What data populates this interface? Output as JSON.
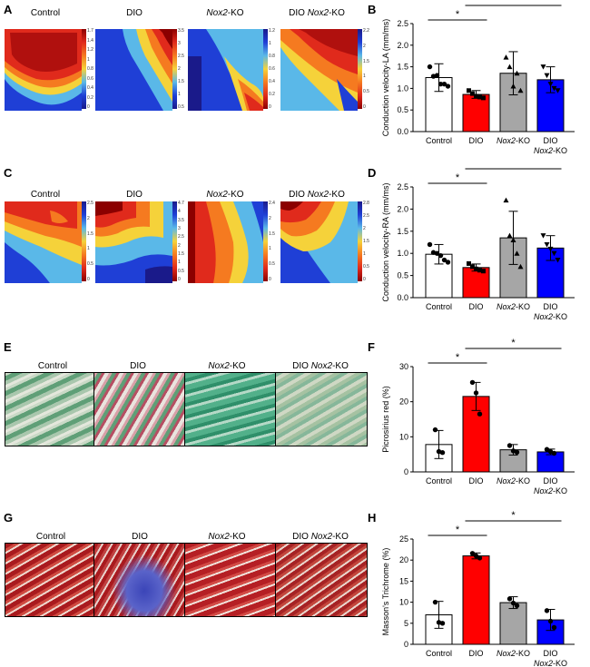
{
  "panel_letters": [
    "A",
    "B",
    "C",
    "D",
    "E",
    "F",
    "G",
    "H"
  ],
  "conditions": {
    "control": "Control",
    "dio": "DIO",
    "nox_italic": "Nox2",
    "ko_suffix": "-KO",
    "dio_prefix": "DIO "
  },
  "colorbars": {
    "A1": [
      "1.7",
      "1.4",
      "1.2",
      "1",
      "0.8",
      "0.6",
      "0.4",
      "0.2",
      "0"
    ],
    "A2": [
      "3.5",
      "3",
      "2.5",
      "2",
      "1.5",
      "1",
      "0.5"
    ],
    "A3": [
      "1.2",
      "1",
      "0.8",
      "0.6",
      "0.4",
      "0.2",
      "0"
    ],
    "A4": [
      "2.2",
      "2",
      "1.5",
      "1",
      "0.5",
      "0"
    ],
    "C1": [
      "2.5",
      "2",
      "1.5",
      "1",
      "0.5",
      "0"
    ],
    "C2": [
      "4.7",
      "4",
      "3.5",
      "3",
      "2.5",
      "2",
      "1.5",
      "1",
      "0.5",
      "0"
    ],
    "C3": [
      "2.4",
      "2",
      "1.5",
      "1",
      "0.5",
      "0"
    ],
    "C4": [
      "2.8",
      "2.5",
      "2",
      "1.5",
      "1",
      "0.5",
      "0"
    ]
  },
  "colors": {
    "control": "#ffffff",
    "dio": "#ff0000",
    "nox2ko": "#a6a6a6",
    "dionox2ko": "#0000ff",
    "stroke": "#000000"
  },
  "chart_data": [
    {
      "panel": "B",
      "type": "bar",
      "categories": [
        "Control",
        "DIO",
        "Nox2-KO",
        "DIO Nox2-KO"
      ],
      "values": [
        1.25,
        0.86,
        1.35,
        1.2
      ],
      "errors": [
        0.32,
        0.09,
        0.5,
        0.3
      ],
      "points": [
        [
          1.5,
          1.28,
          1.3,
          1.1,
          1.1,
          1.05
        ],
        [
          0.95,
          0.88,
          0.82,
          0.8,
          0.78
        ],
        [
          1.72,
          1.5,
          1.05,
          1.35,
          0.95
        ],
        [
          1.5,
          1.3,
          1.1,
          1.0,
          0.95
        ]
      ],
      "markers": [
        "circle",
        "square",
        "triangle",
        "triangle-down"
      ],
      "ylabel": "Conduction velocity-LA (mm/ms)",
      "ylim": [
        0,
        2.5
      ],
      "yticks": [
        "0.0",
        "0.5",
        "1.0",
        "1.5",
        "2.0",
        "2.5"
      ],
      "significance": [
        {
          "from": 0,
          "to": 1,
          "label": "*"
        },
        {
          "from": 1,
          "to": 3,
          "label": "*"
        }
      ]
    },
    {
      "panel": "D",
      "type": "bar",
      "categories": [
        "Control",
        "DIO",
        "Nox2-KO",
        "DIO Nox2-KO"
      ],
      "values": [
        0.98,
        0.68,
        1.35,
        1.12
      ],
      "errors": [
        0.22,
        0.08,
        0.6,
        0.28
      ],
      "points": [
        [
          1.2,
          1.02,
          1.0,
          0.95,
          0.85,
          0.8
        ],
        [
          0.77,
          0.7,
          0.65,
          0.62,
          0.6
        ],
        [
          2.2,
          1.4,
          1.3,
          1.0,
          0.7
        ],
        [
          1.4,
          1.2,
          1.1,
          1.0,
          0.85
        ]
      ],
      "markers": [
        "circle",
        "square",
        "triangle",
        "triangle-down"
      ],
      "ylabel": "Conduction velocity-RA (mm/ms)",
      "ylim": [
        0,
        2.5
      ],
      "yticks": [
        "0.0",
        "0.5",
        "1.0",
        "1.5",
        "2.0",
        "2.5"
      ],
      "significance": [
        {
          "from": 0,
          "to": 1,
          "label": "*"
        },
        {
          "from": 1,
          "to": 3,
          "label": "*"
        }
      ]
    },
    {
      "panel": "F",
      "type": "bar",
      "categories": [
        "Control",
        "DIO",
        "Nox2-KO",
        "DIO Nox2-KO"
      ],
      "values": [
        7.8,
        21.5,
        6.3,
        5.7
      ],
      "errors": [
        4.0,
        4.0,
        1.5,
        0.8
      ],
      "points": [
        [
          12,
          5.8,
          5.5
        ],
        [
          25.5,
          22.5,
          16.5
        ],
        [
          7.5,
          6,
          5.6
        ],
        [
          6.4,
          5.8,
          5.3
        ]
      ],
      "ylabel": "Picrosirius red (%)",
      "ylim": [
        0,
        30
      ],
      "yticks": [
        "0",
        "10",
        "20",
        "30"
      ],
      "significance": [
        {
          "from": 0,
          "to": 1,
          "label": "*"
        },
        {
          "from": 1,
          "to": 3,
          "label": "*"
        }
      ]
    },
    {
      "panel": "H",
      "type": "bar",
      "categories": [
        "Control",
        "DIO",
        "Nox2-KO",
        "DIO Nox2-KO"
      ],
      "values": [
        7.0,
        21.0,
        9.9,
        5.8
      ],
      "errors": [
        3.2,
        0.7,
        1.4,
        2.5
      ],
      "points": [
        [
          10,
          5.2,
          5
        ],
        [
          21.6,
          21,
          20.5
        ],
        [
          10.8,
          9.8,
          9.2
        ],
        [
          8,
          5.5,
          4
        ]
      ],
      "ylabel": "Masson's Trichrome (%)",
      "ylim": [
        0,
        25
      ],
      "yticks": [
        "0",
        "5",
        "10",
        "15",
        "20",
        "25"
      ],
      "significance": [
        {
          "from": 0,
          "to": 1,
          "label": "*"
        },
        {
          "from": 1,
          "to": 3,
          "label": "*"
        }
      ]
    }
  ]
}
